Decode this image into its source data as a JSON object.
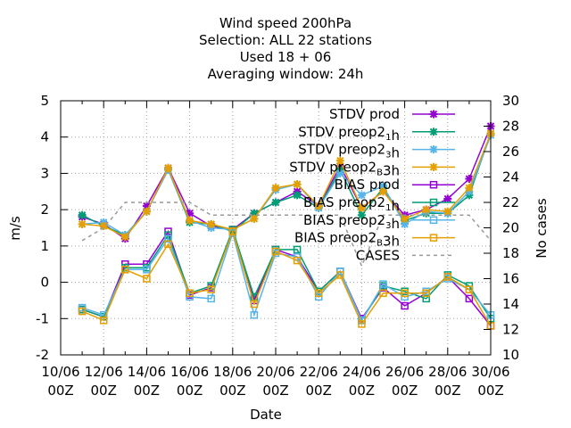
{
  "chart_data": {
    "type": "line",
    "title_lines": [
      "Wind speed 200hPa",
      "Selection: ALL      22 stations",
      "Used  18 + 06",
      "Averaging window: 24h"
    ],
    "xlabel": "Date",
    "ylabel": "m/s",
    "y2label": "No cases",
    "ylim": [
      -2,
      5
    ],
    "y2lim": [
      10,
      30
    ],
    "yticks": [
      "-2",
      "-1",
      "0",
      "1",
      "2",
      "3",
      "4",
      "5"
    ],
    "y2ticks": [
      "10",
      "12",
      "14",
      "16",
      "18",
      "20",
      "22",
      "24",
      "26",
      "28",
      "30"
    ],
    "x_tick_labels": [
      {
        "d": 0,
        "top": "10/06",
        "bottom": "00Z"
      },
      {
        "d": 2,
        "top": "12/06",
        "bottom": "00Z"
      },
      {
        "d": 4,
        "top": "14/06",
        "bottom": "00Z"
      },
      {
        "d": 6,
        "top": "16/06",
        "bottom": "00Z"
      },
      {
        "d": 8,
        "top": "18/06",
        "bottom": "00Z"
      },
      {
        "d": 10,
        "top": "20/06",
        "bottom": "00Z"
      },
      {
        "d": 12,
        "top": "22/06",
        "bottom": "00Z"
      },
      {
        "d": 14,
        "top": "24/06",
        "bottom": "00Z"
      },
      {
        "d": 16,
        "top": "26/06",
        "bottom": "00Z"
      },
      {
        "d": 18,
        "top": "28/06",
        "bottom": "00Z"
      },
      {
        "d": 20,
        "top": "30/06",
        "bottom": "00Z"
      }
    ],
    "x": [
      1,
      2,
      3,
      4,
      5,
      6,
      7,
      8,
      9,
      10,
      11,
      12,
      13,
      14,
      15,
      16,
      17,
      18,
      19,
      20
    ],
    "legend_position": "top-right",
    "series": [
      {
        "name": "STDV prod",
        "legend": [
          {
            "t": "STDV prod"
          }
        ],
        "color": "#9400d3",
        "marker": "x",
        "axis": "y",
        "values": [
          1.8,
          1.6,
          1.2,
          2.1,
          3.15,
          1.9,
          1.55,
          1.45,
          1.9,
          2.2,
          2.5,
          2.1,
          3.2,
          2.05,
          2.5,
          1.85,
          2.0,
          2.3,
          2.85,
          4.3
        ]
      },
      {
        "name": "STDV preop2_1h",
        "legend": [
          {
            "t": "STDV preop2"
          },
          {
            "t": "1",
            "sub": true
          },
          {
            "t": "h"
          }
        ],
        "color": "#009e73",
        "marker": "x",
        "axis": "y",
        "values": [
          1.85,
          1.55,
          1.3,
          1.95,
          3.1,
          1.65,
          1.6,
          1.4,
          1.9,
          2.2,
          2.4,
          2.05,
          3.1,
          1.85,
          2.6,
          1.7,
          1.9,
          1.9,
          2.4,
          4.1
        ]
      },
      {
        "name": "STDV preop2_3h",
        "legend": [
          {
            "t": "STDV preop2"
          },
          {
            "t": "3",
            "sub": true
          },
          {
            "t": "h"
          }
        ],
        "color": "#56b4e9",
        "marker": "x",
        "axis": "y",
        "values": [
          1.6,
          1.65,
          1.3,
          1.95,
          3.1,
          1.7,
          1.5,
          1.45,
          1.75,
          2.55,
          2.7,
          2.05,
          3.0,
          2.4,
          2.65,
          1.6,
          1.95,
          1.9,
          2.5,
          4.05
        ]
      },
      {
        "name": "STDV preop2_B3h",
        "legend": [
          {
            "t": "STDV preop2"
          },
          {
            "t": "B",
            "sub": true
          },
          {
            "t": "3h"
          }
        ],
        "color": "#e69f00",
        "marker": "x",
        "axis": "y",
        "values": [
          1.6,
          1.55,
          1.25,
          1.95,
          3.15,
          1.7,
          1.6,
          1.45,
          1.75,
          2.6,
          2.7,
          2.1,
          3.35,
          2.05,
          2.5,
          1.75,
          2.0,
          1.95,
          2.6,
          4.1
        ]
      },
      {
        "name": "BIAS prod",
        "legend": [
          {
            "t": "BIAS prod"
          }
        ],
        "color": "#9400d3",
        "marker": "square",
        "axis": "y",
        "values": [
          -0.75,
          -0.95,
          0.5,
          0.5,
          1.4,
          -0.35,
          -0.15,
          1.45,
          -0.5,
          0.9,
          0.7,
          -0.25,
          0.3,
          -1.0,
          -0.15,
          -0.65,
          -0.3,
          0.15,
          -0.45,
          -1.2
        ]
      },
      {
        "name": "BIAS preop2_1h",
        "legend": [
          {
            "t": "BIAS preop2"
          },
          {
            "t": "1",
            "sub": true
          },
          {
            "t": "h"
          }
        ],
        "color": "#009e73",
        "marker": "square",
        "axis": "y",
        "values": [
          -0.75,
          -0.95,
          0.4,
          0.4,
          1.3,
          -0.3,
          -0.1,
          1.45,
          -0.4,
          0.9,
          0.9,
          -0.25,
          0.3,
          -1.05,
          -0.1,
          -0.25,
          -0.45,
          0.2,
          -0.1,
          -1.0
        ]
      },
      {
        "name": "BIAS preop2_3h",
        "legend": [
          {
            "t": "BIAS preop2"
          },
          {
            "t": "3",
            "sub": true
          },
          {
            "t": "h"
          }
        ],
        "color": "#56b4e9",
        "marker": "square",
        "axis": "y",
        "values": [
          -0.7,
          -0.9,
          0.35,
          0.35,
          1.2,
          -0.4,
          -0.45,
          1.35,
          -0.9,
          0.8,
          0.7,
          -0.4,
          0.3,
          -1.05,
          -0.05,
          -0.4,
          -0.25,
          0.1,
          -0.2,
          -0.9
        ]
      },
      {
        "name": "BIAS preop2_B3h",
        "legend": [
          {
            "t": "BIAS preop2"
          },
          {
            "t": "B",
            "sub": true
          },
          {
            "t": "3h"
          }
        ],
        "color": "#e69f00",
        "marker": "square",
        "axis": "y",
        "values": [
          -0.8,
          -1.05,
          0.35,
          0.1,
          1.05,
          -0.3,
          -0.2,
          1.4,
          -0.6,
          0.85,
          0.6,
          -0.3,
          0.2,
          -1.15,
          -0.3,
          -0.3,
          -0.3,
          0.15,
          -0.2,
          -1.2
        ]
      },
      {
        "name": "CASES",
        "legend": [
          {
            "t": "CASES"
          }
        ],
        "color": "#999999",
        "marker": "none",
        "dashed": true,
        "axis": "y2",
        "values": [
          19,
          20,
          22,
          22,
          22,
          22,
          21,
          21,
          21,
          21,
          21,
          21,
          21,
          17,
          21,
          21,
          21,
          21,
          21,
          19
        ]
      }
    ]
  }
}
